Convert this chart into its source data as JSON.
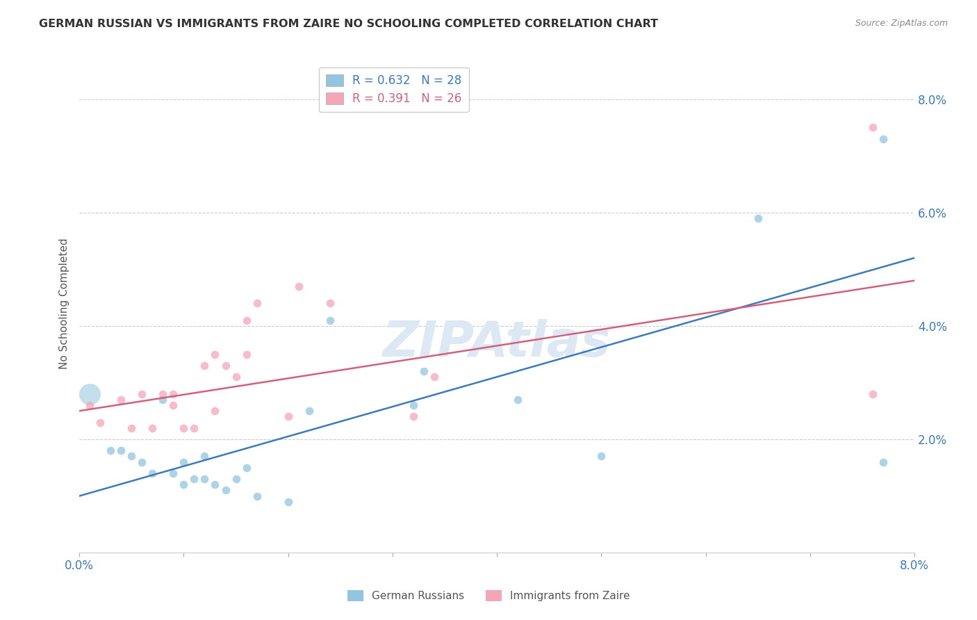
{
  "title": "GERMAN RUSSIAN VS IMMIGRANTS FROM ZAIRE NO SCHOOLING COMPLETED CORRELATION CHART",
  "source": "Source: ZipAtlas.com",
  "ylabel": "No Schooling Completed",
  "xlim": [
    0.0,
    0.08
  ],
  "ylim": [
    0.0,
    0.088
  ],
  "yticks": [
    0.0,
    0.02,
    0.04,
    0.06,
    0.08
  ],
  "ytick_labels": [
    "",
    "2.0%",
    "4.0%",
    "6.0%",
    "8.0%"
  ],
  "watermark": "ZIPAtlas",
  "german_russian_R": 0.632,
  "german_russian_N": 28,
  "zaire_R": 0.391,
  "zaire_N": 26,
  "blue_color": "#92c5de",
  "pink_color": "#f4a6b8",
  "blue_line_color": "#3a7abf",
  "pink_line_color": "#d45f7a",
  "tick_label_color": "#3a7abf",
  "german_russian_x": [
    0.001,
    0.003,
    0.004,
    0.005,
    0.006,
    0.007,
    0.008,
    0.009,
    0.01,
    0.01,
    0.011,
    0.012,
    0.012,
    0.013,
    0.014,
    0.015,
    0.016,
    0.017,
    0.02,
    0.022,
    0.024,
    0.032,
    0.033,
    0.042,
    0.05,
    0.065,
    0.077,
    0.077
  ],
  "german_russian_y": [
    0.028,
    0.018,
    0.018,
    0.017,
    0.016,
    0.014,
    0.027,
    0.014,
    0.012,
    0.016,
    0.013,
    0.017,
    0.013,
    0.012,
    0.011,
    0.013,
    0.015,
    0.01,
    0.009,
    0.025,
    0.041,
    0.026,
    0.032,
    0.027,
    0.017,
    0.059,
    0.073,
    0.016
  ],
  "german_russian_large": true,
  "large_dot_idx": 0,
  "large_dot_size": 500,
  "zaire_x": [
    0.001,
    0.002,
    0.004,
    0.005,
    0.006,
    0.007,
    0.008,
    0.009,
    0.009,
    0.01,
    0.011,
    0.012,
    0.013,
    0.013,
    0.014,
    0.015,
    0.016,
    0.016,
    0.017,
    0.02,
    0.021,
    0.024,
    0.032,
    0.034,
    0.076,
    0.076
  ],
  "zaire_y": [
    0.026,
    0.023,
    0.027,
    0.022,
    0.028,
    0.022,
    0.028,
    0.028,
    0.026,
    0.022,
    0.022,
    0.033,
    0.035,
    0.025,
    0.033,
    0.031,
    0.035,
    0.041,
    0.044,
    0.024,
    0.047,
    0.044,
    0.024,
    0.031,
    0.028,
    0.075
  ],
  "blue_line_x0": 0.0,
  "blue_line_y0": 0.01,
  "blue_line_x1": 0.08,
  "blue_line_y1": 0.052,
  "pink_line_x0": 0.0,
  "pink_line_y0": 0.025,
  "pink_line_x1": 0.08,
  "pink_line_y1": 0.048
}
